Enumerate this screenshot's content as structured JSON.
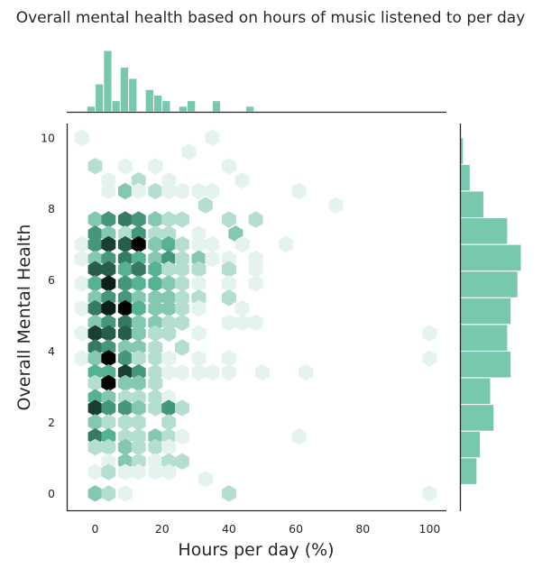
{
  "colors": {
    "hex_light": "#e4f3ed",
    "hex_mid": "#55b394",
    "hex_dark": "#000000",
    "marginal_bar": "#78c8ad",
    "marginal_edge": "#ffffff",
    "axis": "#262626"
  },
  "chart_data": {
    "type": "heatmap",
    "subtype": "hexbin-jointplot",
    "title": "Overall mental health based on hours of music listened to per day",
    "xlabel": "Hours per day (%)",
    "ylabel": "Overall Mental Health",
    "xlim": [
      -8.5,
      105
    ],
    "ylim": [
      -0.5,
      10.4
    ],
    "xticks": [
      "0",
      "20",
      "40",
      "60",
      "80",
      "100"
    ],
    "yticks": [
      "0",
      "2",
      "4",
      "6",
      "8",
      "10"
    ],
    "grid": false,
    "hex_counts": {
      "note_units": "x in hours-percent, y in mental health score, count = relative density 1-10",
      "cells": [
        {
          "x": -4,
          "y": 10,
          "c": 1
        },
        {
          "x": 0,
          "y": 9.2,
          "c": 2
        },
        {
          "x": 9,
          "y": 9.2,
          "c": 1
        },
        {
          "x": 18,
          "y": 9.2,
          "c": 1
        },
        {
          "x": 28,
          "y": 9.6,
          "c": 1
        },
        {
          "x": 35,
          "y": 10,
          "c": 1
        },
        {
          "x": 40,
          "y": 9.2,
          "c": 1
        },
        {
          "x": 4,
          "y": 8.8,
          "c": 1
        },
        {
          "x": 13,
          "y": 8.8,
          "c": 2
        },
        {
          "x": 22,
          "y": 8.8,
          "c": 1
        },
        {
          "x": 26,
          "y": 8.5,
          "c": 1
        },
        {
          "x": 44,
          "y": 8.8,
          "c": 1
        },
        {
          "x": 4,
          "y": 8.5,
          "c": 1
        },
        {
          "x": 9,
          "y": 8.5,
          "c": 3
        },
        {
          "x": 13,
          "y": 8.5,
          "c": 1
        },
        {
          "x": 18,
          "y": 8.5,
          "c": 2
        },
        {
          "x": 22,
          "y": 8.5,
          "c": 1
        },
        {
          "x": 31,
          "y": 8.5,
          "c": 1
        },
        {
          "x": 35,
          "y": 8.5,
          "c": 1
        },
        {
          "x": 61,
          "y": 8.5,
          "c": 1
        },
        {
          "x": 33,
          "y": 8.1,
          "c": 2
        },
        {
          "x": 72,
          "y": 8.1,
          "c": 1
        },
        {
          "x": 0,
          "y": 7.7,
          "c": 3
        },
        {
          "x": 4,
          "y": 7.7,
          "c": 5
        },
        {
          "x": 9,
          "y": 7.7,
          "c": 6
        },
        {
          "x": 13,
          "y": 7.7,
          "c": 5
        },
        {
          "x": 18,
          "y": 7.7,
          "c": 3
        },
        {
          "x": 22,
          "y": 7.7,
          "c": 2
        },
        {
          "x": 26,
          "y": 7.7,
          "c": 2
        },
        {
          "x": 40,
          "y": 7.7,
          "c": 2
        },
        {
          "x": 48,
          "y": 7.7,
          "c": 2
        },
        {
          "x": 0,
          "y": 7.3,
          "c": 5
        },
        {
          "x": 4,
          "y": 7.3,
          "c": 3
        },
        {
          "x": 9,
          "y": 7.3,
          "c": 2
        },
        {
          "x": 13,
          "y": 7.3,
          "c": 5
        },
        {
          "x": 18,
          "y": 7.3,
          "c": 2
        },
        {
          "x": 22,
          "y": 7.3,
          "c": 2
        },
        {
          "x": 31,
          "y": 7.3,
          "c": 1
        },
        {
          "x": 42,
          "y": 7.3,
          "c": 3
        },
        {
          "x": -4,
          "y": 7.0,
          "c": 1
        },
        {
          "x": 0,
          "y": 7.0,
          "c": 5
        },
        {
          "x": 4,
          "y": 7.0,
          "c": 8
        },
        {
          "x": 9,
          "y": 7.0,
          "c": 7
        },
        {
          "x": 13,
          "y": 7.0,
          "c": 10
        },
        {
          "x": 18,
          "y": 7.0,
          "c": 3
        },
        {
          "x": 22,
          "y": 7.0,
          "c": 4
        },
        {
          "x": 26,
          "y": 7.0,
          "c": 2
        },
        {
          "x": 31,
          "y": 7.0,
          "c": 1
        },
        {
          "x": 35,
          "y": 7.0,
          "c": 1
        },
        {
          "x": 44,
          "y": 7.0,
          "c": 1
        },
        {
          "x": 57,
          "y": 7.0,
          "c": 1
        },
        {
          "x": -4,
          "y": 6.6,
          "c": 1
        },
        {
          "x": 0,
          "y": 6.6,
          "c": 3
        },
        {
          "x": 4,
          "y": 6.6,
          "c": 5
        },
        {
          "x": 9,
          "y": 6.6,
          "c": 6
        },
        {
          "x": 13,
          "y": 6.6,
          "c": 4
        },
        {
          "x": 18,
          "y": 6.6,
          "c": 3
        },
        {
          "x": 22,
          "y": 6.6,
          "c": 5
        },
        {
          "x": 26,
          "y": 6.6,
          "c": 2
        },
        {
          "x": 31,
          "y": 6.6,
          "c": 3
        },
        {
          "x": 35,
          "y": 6.6,
          "c": 1
        },
        {
          "x": 40,
          "y": 6.6,
          "c": 1
        },
        {
          "x": 48,
          "y": 6.6,
          "c": 1
        },
        {
          "x": 0,
          "y": 6.3,
          "c": 7
        },
        {
          "x": 4,
          "y": 6.3,
          "c": 7
        },
        {
          "x": 9,
          "y": 6.3,
          "c": 4
        },
        {
          "x": 13,
          "y": 6.3,
          "c": 6
        },
        {
          "x": 18,
          "y": 6.3,
          "c": 4
        },
        {
          "x": 22,
          "y": 6.3,
          "c": 2
        },
        {
          "x": 26,
          "y": 6.3,
          "c": 2
        },
        {
          "x": 31,
          "y": 6.3,
          "c": 2
        },
        {
          "x": 40,
          "y": 6.3,
          "c": 2
        },
        {
          "x": 48,
          "y": 6.3,
          "c": 1
        },
        {
          "x": -4,
          "y": 5.9,
          "c": 1
        },
        {
          "x": 0,
          "y": 5.9,
          "c": 4
        },
        {
          "x": 4,
          "y": 5.9,
          "c": 9
        },
        {
          "x": 9,
          "y": 5.9,
          "c": 5
        },
        {
          "x": 13,
          "y": 5.9,
          "c": 4
        },
        {
          "x": 18,
          "y": 5.9,
          "c": 4
        },
        {
          "x": 22,
          "y": 5.9,
          "c": 3
        },
        {
          "x": 26,
          "y": 5.9,
          "c": 2
        },
        {
          "x": 31,
          "y": 5.9,
          "c": 1
        },
        {
          "x": 40,
          "y": 5.9,
          "c": 1
        },
        {
          "x": 48,
          "y": 5.9,
          "c": 1
        },
        {
          "x": 0,
          "y": 5.5,
          "c": 3
        },
        {
          "x": 4,
          "y": 5.5,
          "c": 5
        },
        {
          "x": 9,
          "y": 5.5,
          "c": 5
        },
        {
          "x": 13,
          "y": 5.5,
          "c": 3
        },
        {
          "x": 18,
          "y": 5.5,
          "c": 3
        },
        {
          "x": 22,
          "y": 5.5,
          "c": 3
        },
        {
          "x": 26,
          "y": 5.5,
          "c": 2
        },
        {
          "x": 31,
          "y": 5.5,
          "c": 2
        },
        {
          "x": 40,
          "y": 5.5,
          "c": 2
        },
        {
          "x": -4,
          "y": 5.2,
          "c": 1
        },
        {
          "x": 0,
          "y": 5.2,
          "c": 6
        },
        {
          "x": 4,
          "y": 5.2,
          "c": 9
        },
        {
          "x": 9,
          "y": 5.2,
          "c": 10
        },
        {
          "x": 13,
          "y": 5.2,
          "c": 4
        },
        {
          "x": 18,
          "y": 5.2,
          "c": 3
        },
        {
          "x": 22,
          "y": 5.2,
          "c": 3
        },
        {
          "x": 26,
          "y": 5.2,
          "c": 2
        },
        {
          "x": 31,
          "y": 5.2,
          "c": 1
        },
        {
          "x": 44,
          "y": 5.2,
          "c": 1
        },
        {
          "x": 0,
          "y": 4.8,
          "c": 3
        },
        {
          "x": 4,
          "y": 4.8,
          "c": 5
        },
        {
          "x": 9,
          "y": 4.8,
          "c": 6
        },
        {
          "x": 13,
          "y": 4.8,
          "c": 3
        },
        {
          "x": 18,
          "y": 4.8,
          "c": 3
        },
        {
          "x": 22,
          "y": 4.8,
          "c": 2
        },
        {
          "x": 26,
          "y": 4.8,
          "c": 2
        },
        {
          "x": 40,
          "y": 4.8,
          "c": 1
        },
        {
          "x": 44,
          "y": 4.8,
          "c": 1
        },
        {
          "x": 48,
          "y": 4.8,
          "c": 1
        },
        {
          "x": -4,
          "y": 4.5,
          "c": 1
        },
        {
          "x": 0,
          "y": 4.5,
          "c": 8
        },
        {
          "x": 4,
          "y": 4.5,
          "c": 7
        },
        {
          "x": 9,
          "y": 4.5,
          "c": 7
        },
        {
          "x": 13,
          "y": 4.5,
          "c": 3
        },
        {
          "x": 18,
          "y": 4.5,
          "c": 2
        },
        {
          "x": 22,
          "y": 4.5,
          "c": 2
        },
        {
          "x": 31,
          "y": 4.5,
          "c": 1
        },
        {
          "x": 100,
          "y": 4.5,
          "c": 1
        },
        {
          "x": 0,
          "y": 4.1,
          "c": 6
        },
        {
          "x": 4,
          "y": 4.1,
          "c": 5
        },
        {
          "x": 9,
          "y": 4.1,
          "c": 3
        },
        {
          "x": 13,
          "y": 4.1,
          "c": 3
        },
        {
          "x": 18,
          "y": 4.1,
          "c": 2
        },
        {
          "x": 26,
          "y": 4.1,
          "c": 2
        },
        {
          "x": -4,
          "y": 3.8,
          "c": 1
        },
        {
          "x": 0,
          "y": 3.8,
          "c": 3
        },
        {
          "x": 4,
          "y": 3.8,
          "c": 10
        },
        {
          "x": 9,
          "y": 3.8,
          "c": 5
        },
        {
          "x": 13,
          "y": 3.8,
          "c": 2
        },
        {
          "x": 18,
          "y": 3.8,
          "c": 2
        },
        {
          "x": 22,
          "y": 3.8,
          "c": 1
        },
        {
          "x": 31,
          "y": 3.8,
          "c": 1
        },
        {
          "x": 40,
          "y": 3.8,
          "c": 1
        },
        {
          "x": 100,
          "y": 3.8,
          "c": 1
        },
        {
          "x": 0,
          "y": 3.4,
          "c": 4
        },
        {
          "x": 4,
          "y": 3.4,
          "c": 4
        },
        {
          "x": 9,
          "y": 3.4,
          "c": 8
        },
        {
          "x": 13,
          "y": 3.4,
          "c": 5
        },
        {
          "x": 18,
          "y": 3.4,
          "c": 2
        },
        {
          "x": 22,
          "y": 3.4,
          "c": 1
        },
        {
          "x": 26,
          "y": 3.4,
          "c": 1
        },
        {
          "x": 31,
          "y": 3.4,
          "c": 1
        },
        {
          "x": 35,
          "y": 3.4,
          "c": 1
        },
        {
          "x": 40,
          "y": 3.4,
          "c": 1
        },
        {
          "x": 50,
          "y": 3.4,
          "c": 1
        },
        {
          "x": 63,
          "y": 3.4,
          "c": 1
        },
        {
          "x": 0,
          "y": 3.1,
          "c": 2
        },
        {
          "x": 4,
          "y": 3.1,
          "c": 10
        },
        {
          "x": 9,
          "y": 3.1,
          "c": 3
        },
        {
          "x": 13,
          "y": 3.1,
          "c": 3
        },
        {
          "x": 18,
          "y": 3.1,
          "c": 2
        },
        {
          "x": 0,
          "y": 2.7,
          "c": 4
        },
        {
          "x": 4,
          "y": 2.7,
          "c": 3
        },
        {
          "x": 9,
          "y": 2.7,
          "c": 2
        },
        {
          "x": 13,
          "y": 2.7,
          "c": 2
        },
        {
          "x": 18,
          "y": 2.7,
          "c": 2
        },
        {
          "x": 22,
          "y": 2.7,
          "c": 1
        },
        {
          "x": 0,
          "y": 2.4,
          "c": 8
        },
        {
          "x": 4,
          "y": 2.4,
          "c": 5
        },
        {
          "x": 9,
          "y": 2.4,
          "c": 5
        },
        {
          "x": 13,
          "y": 2.4,
          "c": 3
        },
        {
          "x": 18,
          "y": 2.4,
          "c": 2
        },
        {
          "x": 22,
          "y": 2.4,
          "c": 5
        },
        {
          "x": 26,
          "y": 2.4,
          "c": 2
        },
        {
          "x": 0,
          "y": 2.0,
          "c": 3
        },
        {
          "x": 4,
          "y": 2.0,
          "c": 2
        },
        {
          "x": 9,
          "y": 2.0,
          "c": 2
        },
        {
          "x": 13,
          "y": 2.0,
          "c": 2
        },
        {
          "x": 22,
          "y": 2.0,
          "c": 2
        },
        {
          "x": 0,
          "y": 1.6,
          "c": 6
        },
        {
          "x": 4,
          "y": 1.6,
          "c": 4
        },
        {
          "x": 9,
          "y": 1.6,
          "c": 2
        },
        {
          "x": 13,
          "y": 1.6,
          "c": 2
        },
        {
          "x": 18,
          "y": 1.6,
          "c": 3
        },
        {
          "x": 22,
          "y": 1.6,
          "c": 2
        },
        {
          "x": 26,
          "y": 1.6,
          "c": 1
        },
        {
          "x": 61,
          "y": 1.6,
          "c": 1
        },
        {
          "x": 0,
          "y": 1.3,
          "c": 2
        },
        {
          "x": 4,
          "y": 1.3,
          "c": 2
        },
        {
          "x": 9,
          "y": 1.3,
          "c": 3
        },
        {
          "x": 13,
          "y": 1.3,
          "c": 2
        },
        {
          "x": 18,
          "y": 1.3,
          "c": 2
        },
        {
          "x": 22,
          "y": 1.3,
          "c": 1
        },
        {
          "x": 4,
          "y": 0.9,
          "c": 1
        },
        {
          "x": 9,
          "y": 0.9,
          "c": 3
        },
        {
          "x": 13,
          "y": 0.9,
          "c": 2
        },
        {
          "x": 18,
          "y": 0.9,
          "c": 1
        },
        {
          "x": 22,
          "y": 0.9,
          "c": 2
        },
        {
          "x": 26,
          "y": 0.9,
          "c": 2
        },
        {
          "x": 0,
          "y": 0.6,
          "c": 1
        },
        {
          "x": 4,
          "y": 0.6,
          "c": 2
        },
        {
          "x": 9,
          "y": 0.6,
          "c": 1
        },
        {
          "x": 13,
          "y": 0.6,
          "c": 1
        },
        {
          "x": 18,
          "y": 0.6,
          "c": 1
        },
        {
          "x": 22,
          "y": 0.6,
          "c": 1
        },
        {
          "x": 33,
          "y": 0.4,
          "c": 1
        },
        {
          "x": 0,
          "y": 0.0,
          "c": 3
        },
        {
          "x": 4,
          "y": 0.0,
          "c": 2
        },
        {
          "x": 9,
          "y": 0.0,
          "c": 1
        },
        {
          "x": 40,
          "y": 0.0,
          "c": 2
        },
        {
          "x": 100,
          "y": 0.0,
          "c": 1
        }
      ]
    },
    "x_marginal": {
      "bin_width": 2.5,
      "bins": [
        {
          "x": -2.5,
          "count": 1
        },
        {
          "x": 0,
          "count": 5
        },
        {
          "x": 2.5,
          "count": 11
        },
        {
          "x": 5,
          "count": 2
        },
        {
          "x": 7.5,
          "count": 8
        },
        {
          "x": 10,
          "count": 6
        },
        {
          "x": 15,
          "count": 4
        },
        {
          "x": 17.5,
          "count": 3
        },
        {
          "x": 20,
          "count": 2
        },
        {
          "x": 25,
          "count": 1
        },
        {
          "x": 27.5,
          "count": 2
        },
        {
          "x": 35,
          "count": 2
        },
        {
          "x": 45,
          "count": 1
        }
      ]
    },
    "y_marginal": {
      "bins": [
        {
          "lo": 9.25,
          "hi": 10.0,
          "count": 1
        },
        {
          "lo": 8.5,
          "hi": 9.25,
          "count": 3
        },
        {
          "lo": 7.75,
          "hi": 8.5,
          "count": 7
        },
        {
          "lo": 7.0,
          "hi": 7.75,
          "count": 14
        },
        {
          "lo": 6.25,
          "hi": 7.0,
          "count": 18
        },
        {
          "lo": 5.5,
          "hi": 6.25,
          "count": 17
        },
        {
          "lo": 4.75,
          "hi": 5.5,
          "count": 15
        },
        {
          "lo": 4.0,
          "hi": 4.75,
          "count": 14
        },
        {
          "lo": 3.25,
          "hi": 4.0,
          "count": 15
        },
        {
          "lo": 2.5,
          "hi": 3.25,
          "count": 9
        },
        {
          "lo": 1.75,
          "hi": 2.5,
          "count": 10
        },
        {
          "lo": 1.0,
          "hi": 1.75,
          "count": 6
        },
        {
          "lo": 0.25,
          "hi": 1.0,
          "count": 5
        }
      ]
    }
  }
}
